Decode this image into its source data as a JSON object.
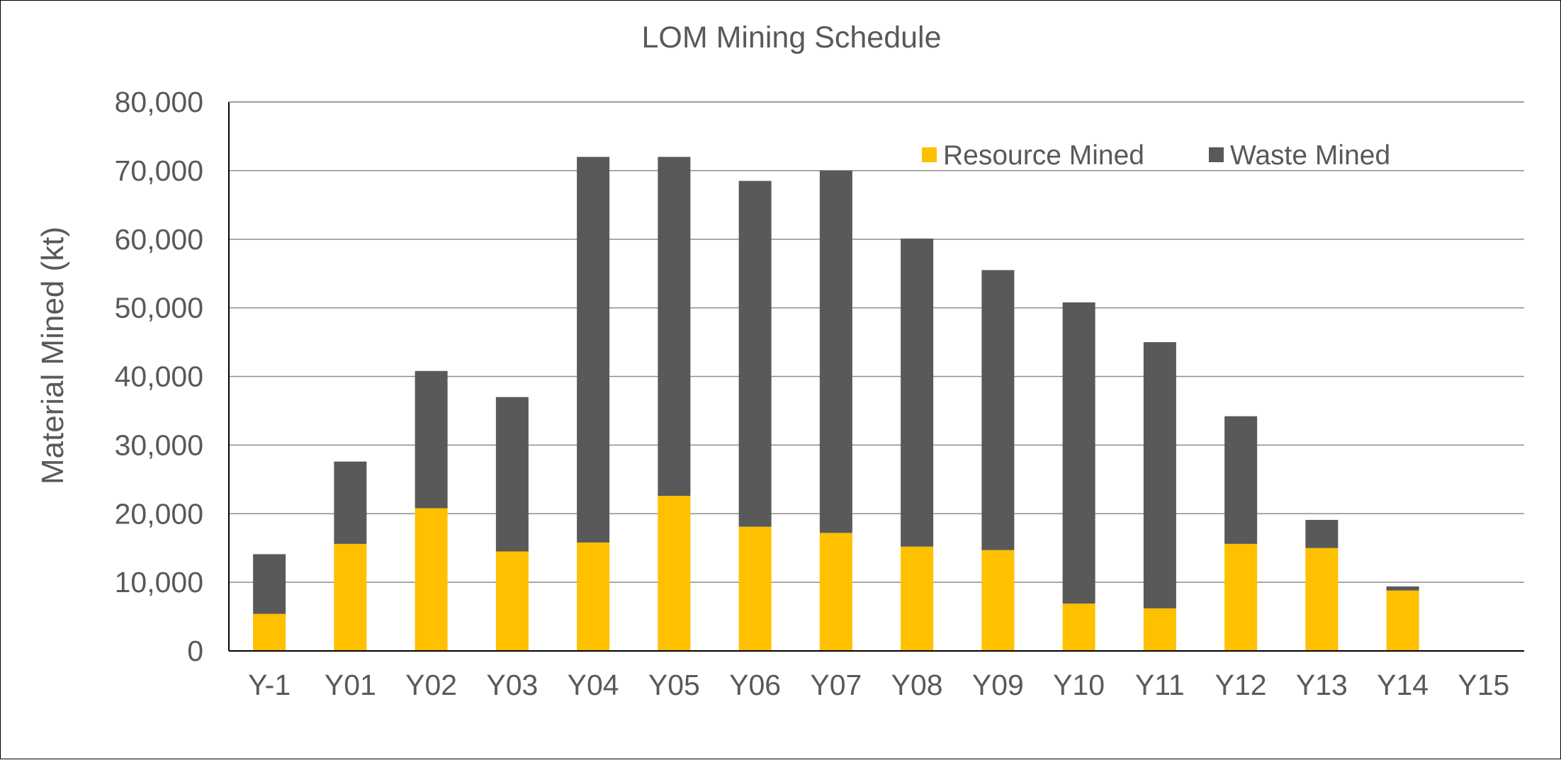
{
  "chart_data": {
    "type": "bar",
    "stacked": true,
    "title": "LOM Mining Schedule",
    "xlabel": "",
    "ylabel": "Material Mined (kt)",
    "ylim": [
      0,
      80000
    ],
    "yticks": [
      0,
      10000,
      20000,
      30000,
      40000,
      50000,
      60000,
      70000,
      80000
    ],
    "ytick_labels": [
      "0",
      "10,000",
      "20,000",
      "30,000",
      "40,000",
      "50,000",
      "60,000",
      "70,000",
      "80,000"
    ],
    "grid": "horizontal",
    "legend_position": "top-right",
    "categories": [
      "Y-1",
      "Y01",
      "Y02",
      "Y03",
      "Y04",
      "Y05",
      "Y06",
      "Y07",
      "Y08",
      "Y09",
      "Y10",
      "Y11",
      "Y12",
      "Y13",
      "Y14",
      "Y15"
    ],
    "series": [
      {
        "name": "Resource Mined",
        "color": "#FFC000",
        "values": [
          5400,
          15600,
          20800,
          14500,
          15800,
          22600,
          18100,
          17200,
          15200,
          14700,
          6900,
          6200,
          15600,
          15000,
          8800,
          0
        ]
      },
      {
        "name": "Waste Mined",
        "color": "#595959",
        "values": [
          8700,
          12000,
          20000,
          22500,
          56200,
          49400,
          50400,
          52800,
          44900,
          40800,
          43900,
          38800,
          18600,
          4100,
          600,
          0
        ]
      }
    ]
  }
}
